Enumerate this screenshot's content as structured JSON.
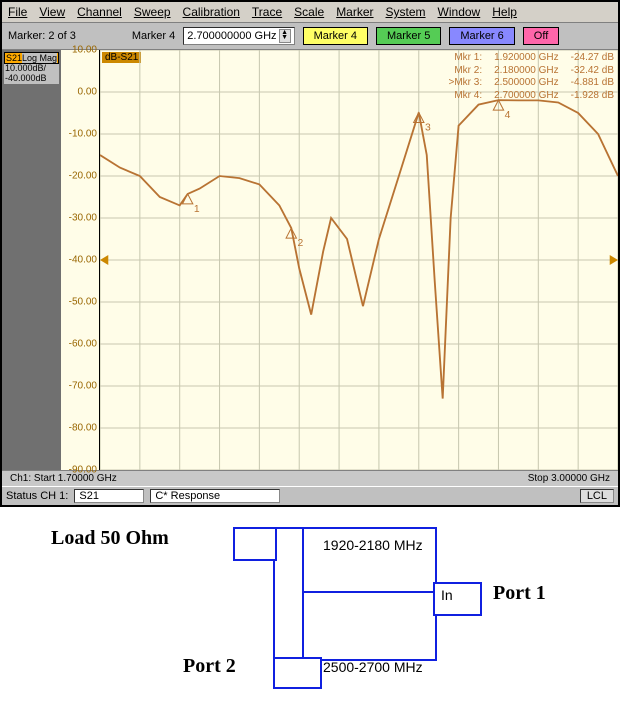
{
  "menu": [
    "File",
    "View",
    "Channel",
    "Sweep",
    "Calibration",
    "Trace",
    "Scale",
    "Marker",
    "System",
    "Window",
    "Help"
  ],
  "toolbar": {
    "marker_status": "Marker: 2 of 3",
    "marker_sel_label": "Marker 4",
    "marker_freq": "2.700000000 GHz",
    "buttons": {
      "m4": "Marker 4",
      "m5": "Marker 5",
      "m6": "Marker 6",
      "off": "Off"
    }
  },
  "sidebar": {
    "trace": "S21",
    "format": "Log Mag",
    "scale": "10.000dB/",
    "ref": "-40.000dB"
  },
  "plot": {
    "trace_label": "dB-S21",
    "yticks": [
      10,
      0,
      -10,
      -20,
      -30,
      -40,
      -50,
      -60,
      -70,
      -80,
      -90
    ],
    "ylim": [
      -90,
      10
    ],
    "xlim": [
      1.7,
      3.0
    ],
    "grid_color": "#c8c8b0",
    "bg_color": "#fffde8",
    "line_color": "#b87333",
    "line_width": 1.8,
    "data": [
      [
        1.7,
        -15
      ],
      [
        1.75,
        -18
      ],
      [
        1.8,
        -20
      ],
      [
        1.85,
        -25
      ],
      [
        1.9,
        -27
      ],
      [
        1.92,
        -24.27
      ],
      [
        1.95,
        -23
      ],
      [
        2.0,
        -20
      ],
      [
        2.05,
        -20.5
      ],
      [
        2.1,
        -22
      ],
      [
        2.15,
        -27
      ],
      [
        2.18,
        -32.4
      ],
      [
        2.2,
        -42
      ],
      [
        2.23,
        -53
      ],
      [
        2.26,
        -38
      ],
      [
        2.28,
        -30
      ],
      [
        2.32,
        -35
      ],
      [
        2.36,
        -51
      ],
      [
        2.4,
        -35
      ],
      [
        2.45,
        -20
      ],
      [
        2.5,
        -4.88
      ],
      [
        2.52,
        -15
      ],
      [
        2.54,
        -45
      ],
      [
        2.56,
        -73
      ],
      [
        2.58,
        -30
      ],
      [
        2.6,
        -8
      ],
      [
        2.65,
        -3
      ],
      [
        2.7,
        -1.93
      ],
      [
        2.75,
        -2
      ],
      [
        2.8,
        -2
      ],
      [
        2.85,
        -2.5
      ],
      [
        2.9,
        -5
      ],
      [
        2.95,
        -10
      ],
      [
        3.0,
        -20
      ]
    ],
    "markers": [
      {
        "name": "Mkr 1:",
        "freq": "1.920000 GHz",
        "val": "-24.27 dB",
        "x": 1.92,
        "y": -24.27,
        "num": "1"
      },
      {
        "name": "Mkr 2:",
        "freq": "2.180000 GHz",
        "val": "-32.42 dB",
        "x": 2.18,
        "y": -32.4,
        "num": "2"
      },
      {
        "name": ">Mkr 3:",
        "freq": "2.500000 GHz",
        "val": "-4.881 dB",
        "x": 2.5,
        "y": -4.88,
        "num": "3"
      },
      {
        "name": "Mkr 4:",
        "freq": "2.700000 GHz",
        "val": "-1.928 dB",
        "x": 2.7,
        "y": -1.93,
        "num": "4"
      }
    ]
  },
  "xaxis": {
    "start": "Ch1: Start 1.70000 GHz",
    "stop": "Stop 3.00000 GHz"
  },
  "status": {
    "label": "Status  CH 1:",
    "s": "S21",
    "resp": "C* Response",
    "lcl": "LCL"
  },
  "diagram": {
    "load": "Load 50 Ohm",
    "band1": "1920-2180 MHz",
    "band2": "2500-2700 MHz",
    "in": "In",
    "port1": "Port 1",
    "port2": "Port 2"
  }
}
